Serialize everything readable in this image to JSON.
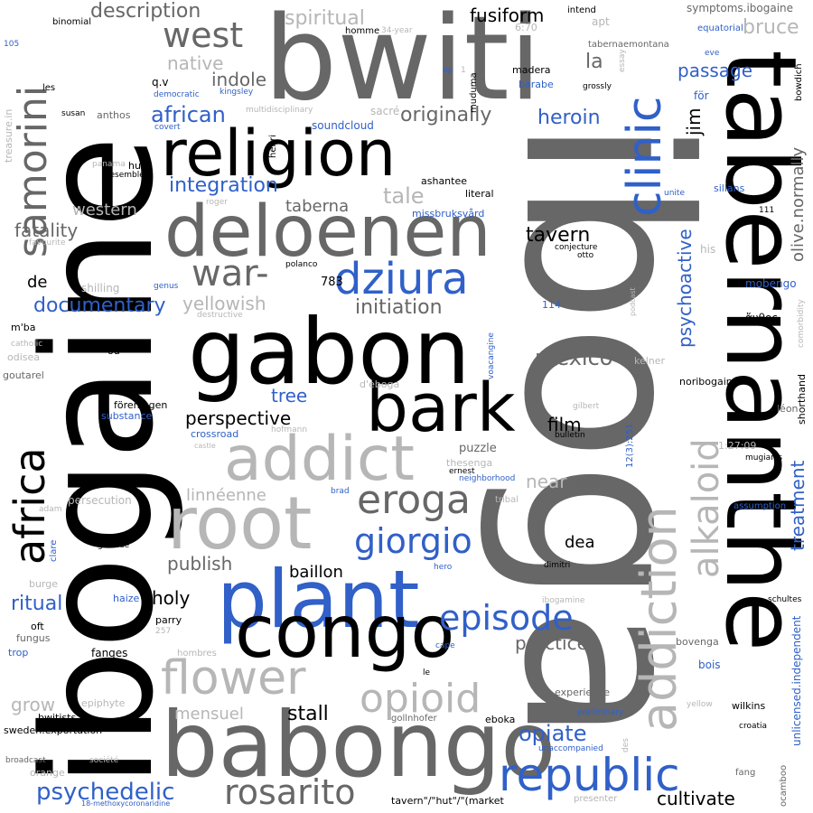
{
  "colors": {
    "black": "#000000",
    "dark_gray": "#676767",
    "light_gray": "#b6b6b6",
    "blue": "#3060c8"
  },
  "words": {
    "iboga": "iboga",
    "ibogaine": "ibogaine",
    "bwiti": "bwiti",
    "tabernanthe": "tabernanthe",
    "gabon": "gabon",
    "babongo": "babongo",
    "religion": "religion",
    "deloenen": "deloenen",
    "plant": "plant",
    "congo": "congo",
    "root": "root",
    "addict": "addict",
    "bark": "bark",
    "addiction": "addiction",
    "clinic": "clinic",
    "africa": "africa",
    "samorini": "samorini",
    "flower": "flower",
    "opioid": "opioid",
    "republic": "republic",
    "rosarito": "rosarito",
    "alkaloid": "alkaloid",
    "war": "war-",
    "dziura": "dziura",
    "episode": "episode",
    "eroga": "eroga",
    "giorgio": "giorgio",
    "west": "west",
    "psychedelic": "psychedelic",
    "documentary": "documentary",
    "opiate": "opiate",
    "cultivate": "cultivate",
    "integration": "integration",
    "african": "african",
    "originally": "originally",
    "heroin": "heroin",
    "passage": "passage",
    "psychoactive": "psychoactive",
    "treatment": "treatment",
    "perspective": "perspective",
    "tavern": "tavern",
    "initiation": "initiation",
    "mexico": "mexico",
    "yellowish": "yellowish",
    "description": "description",
    "fusiform": "fusiform",
    "spiritual": "spiritual",
    "native": "native",
    "indole": "indole",
    "la": "la",
    "bruce": "bruce",
    "jim": "jim",
    "olive_normally": "olive.normally",
    "fatality": "fatality",
    "western": "western",
    "taberna": "taberna",
    "tale": "tale",
    "tree": "tree",
    "holy": "holy",
    "ritual": "ritual",
    "publish": "publish",
    "baillon": "baillon",
    "practice": "practice",
    "stall": "stall",
    "grow": "grow",
    "mensuel": "mensuel",
    "film": "film",
    "dea": "dea",
    "near": "near",
    "linneenne": "linnéenne",
    "puzzle": "puzzle",
    "de": "de",
    "n783": "783",
    "unlicensed": "unlicensed.independent",
    "symptoms": "symptoms.ibogaine",
    "tabernaemontana": "tabernaemontana",
    "binomial": "binomial",
    "intend": "intend",
    "apt": "apt",
    "essay": "essay",
    "eve": "eve",
    "equatorial": "equatorial",
    "bowdich": "bowdich",
    "n105": "105",
    "treasure": "treasure.in",
    "les": "les",
    "susan": "susan",
    "anthos": "anthos",
    "q_v": "q.v",
    "democratic": "democratic",
    "kingsley": "kingsley",
    "covert": "covert",
    "multidisciplinary": "multidisciplinary",
    "sacre": "sacré",
    "soundcloud": "soundcloud",
    "homme": "homme",
    "year34": "34-year",
    "n670": "6:70",
    "madera": "madera",
    "up": "up",
    "one": "1",
    "muduma": "muduma",
    "barabe": "barabe",
    "grossly": "grossly",
    "for": "för",
    "panama": "panama",
    "resemble": "resemble",
    "hut": "hut",
    "henri": "henri",
    "ashantee": "ashantee",
    "literal": "literal",
    "roger": "roger",
    "missbruk": "missbruksvård",
    "unite": "unite",
    "sillans": "sillans",
    "n111": "111",
    "his": "his",
    "favourite": "favourite",
    "conjecture": "conjecture",
    "otto": "otto",
    "polanco": "polanco",
    "genus": "genus",
    "shilling": "shilling",
    "podcast": "podcast",
    "mobengo": "mobengo",
    "comorbidity": "comorbidity",
    "mba": "m'ba",
    "destructive": "destructive",
    "n114": "114",
    "anthos_greek": "ἄνθος",
    "catholic": "catholic",
    "ou": "ou",
    "odisea": "odisea",
    "goutarel": "goutarel",
    "voacangine": "voacangine",
    "kelner": "kelner",
    "noribogaine": "noribogaine",
    "deboga": "d'eboga",
    "foreningen": "föreningen",
    "substance": "substance",
    "crossroad": "crossroad",
    "castle": "castle",
    "hofmann": "hofmann",
    "gilbert": "gilbert",
    "ref": "12(3):251",
    "bulletin": "bulletin",
    "leon": "léon",
    "shorthand": "shorthand",
    "time": "1:27:09",
    "mugianis": "mugianis",
    "thesenga": "thesenga",
    "neighborhood": "neighborhood",
    "ernest": "ernest",
    "brad": "brad",
    "hollistisk": "hollistisk",
    "persecution": "persecution",
    "adam": "adam",
    "tribal": "tribal",
    "assumption": "assumption",
    "globose": "globose",
    "clare": "clare",
    "dimitri": "dimitri",
    "burge": "burge",
    "hero": "hero",
    "ibogamine": "ibogamine",
    "schultes": "schultes",
    "haize": "haize",
    "oft": "oft",
    "fungus": "fungus",
    "parry": "parry",
    "n257": "257",
    "trop": "trop",
    "fanges": "fanges",
    "hombres": "hombres",
    "cape": "cape",
    "bovenga": "bovenga",
    "le": "le",
    "bois": "bois",
    "epiphyte": "epiphyte",
    "experience": "experience",
    "yellow": "yellow",
    "wilkins": "wilkins",
    "bwitists": "bwitists",
    "gollnhofer": "gollnhofer",
    "eboka": "eboka",
    "preliminary": "preliminary",
    "croatia": "croatia",
    "sweden": "sweden.exportation",
    "broadcast": "broadcast",
    "societe": "société",
    "unaccompanied": "unaccompanied",
    "des": "des",
    "fang": "fang",
    "orange": "orange",
    "methoxy": "18-methoxycoronaridine",
    "presenter": "presenter",
    "tavern_hut": "tavern\"/\"hut\"/\"(market",
    "ocamboo": "ocamboo"
  }
}
